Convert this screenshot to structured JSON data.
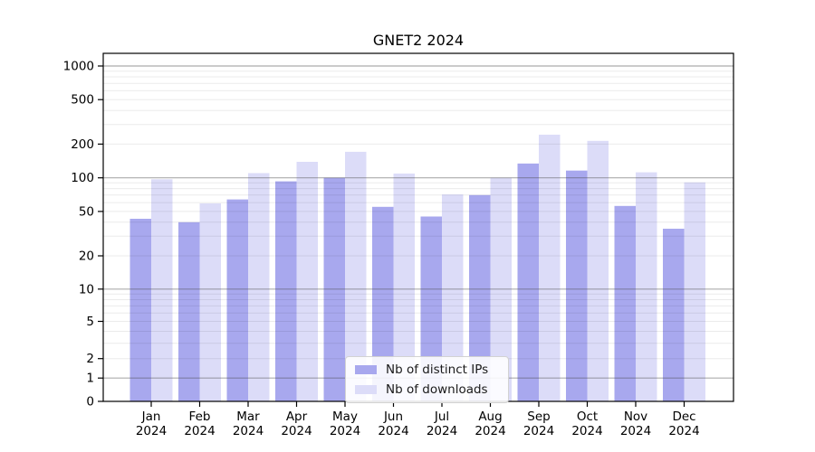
{
  "title": "GNET2 2024",
  "chart_data": {
    "type": "bar",
    "title": "GNET2 2024",
    "categories": [
      "Jan 2024",
      "Feb 2024",
      "Mar 2024",
      "Apr 2024",
      "May 2024",
      "Jun 2024",
      "Jul 2024",
      "Aug 2024",
      "Sep 2024",
      "Oct 2024",
      "Nov 2024",
      "Dec 2024"
    ],
    "series": [
      {
        "name": "Nb of distinct IPs",
        "color": "#a8a8ee",
        "values": [
          43,
          40,
          64,
          93,
          100,
          55,
          45,
          70,
          134,
          116,
          56,
          35
        ]
      },
      {
        "name": "Nb of downloads",
        "color": "#dcdcf8",
        "values": [
          97,
          59,
          110,
          139,
          171,
          109,
          71,
          100,
          243,
          214,
          112,
          91
        ]
      }
    ],
    "xlabel": "",
    "ylabel": "",
    "yscale": "symlog",
    "yticks": [
      1000,
      500,
      200,
      100,
      50,
      20,
      10,
      5,
      2,
      1,
      0
    ],
    "ylim": [
      0,
      1500
    ],
    "grid": true,
    "legend_position": "lower center"
  }
}
